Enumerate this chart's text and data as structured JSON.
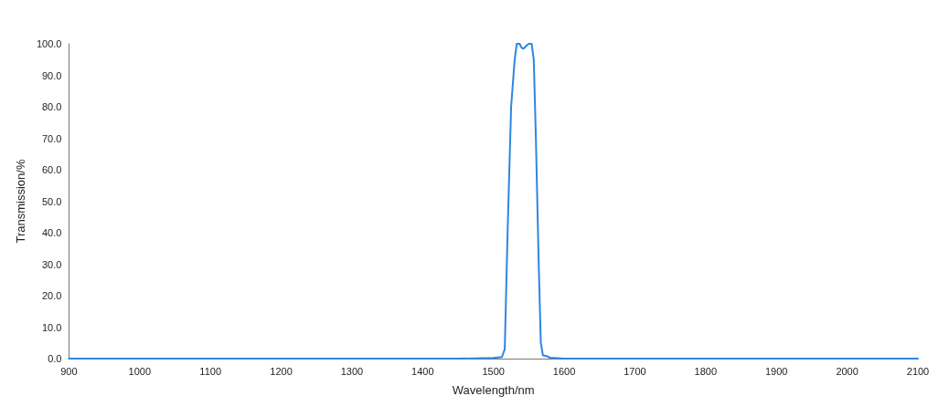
{
  "chart_data": {
    "type": "line",
    "xlabel": "Wavelength/nm",
    "ylabel": "Transmission/%",
    "x": [
      900,
      1450,
      1500,
      1512,
      1516,
      1520,
      1525,
      1530,
      1533,
      1537,
      1540,
      1543,
      1547,
      1550,
      1554,
      1557,
      1560,
      1564,
      1567,
      1570,
      1575,
      1580,
      1600,
      2100
    ],
    "series": [
      {
        "color": "#2f86e0",
        "values": [
          0,
          0,
          0.2,
          0.5,
          3,
          40,
          80,
          95,
          100,
          100,
          98.7,
          98.5,
          99.5,
          100,
          100,
          95,
          70,
          30,
          5,
          1,
          0.8,
          0.3,
          0,
          0
        ]
      }
    ],
    "xlim": [
      900,
      2100
    ],
    "xticks": [
      900,
      1000,
      1100,
      1200,
      1300,
      1400,
      1500,
      1600,
      1700,
      1800,
      1900,
      2000,
      2100
    ],
    "ylim": [
      0,
      100
    ],
    "yticks": [
      {
        "value": 0,
        "label": "0.0"
      },
      {
        "value": 10,
        "label": "10.0"
      },
      {
        "value": 20,
        "label": "20.0"
      },
      {
        "value": 30,
        "label": "30.0"
      },
      {
        "value": 40,
        "label": "40.0"
      },
      {
        "value": 50,
        "label": "50.0"
      },
      {
        "value": 60,
        "label": "60.0"
      },
      {
        "value": 70,
        "label": "70.0"
      },
      {
        "value": 80,
        "label": "80.0"
      },
      {
        "value": 90,
        "label": "90.0"
      },
      {
        "value": 100,
        "label": "100.0"
      }
    ],
    "grid": false,
    "marker": "none",
    "line_style": "solid"
  }
}
